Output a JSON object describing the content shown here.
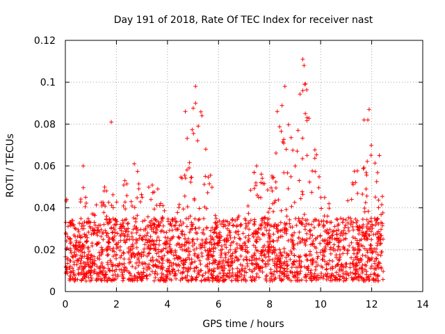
{
  "chart_data": {
    "type": "scatter",
    "title": "Day 191 of 2018, Rate Of TEC Index for receiver nast",
    "xlabel": "GPS time / hours",
    "ylabel": "ROTI / TECUs",
    "xlim": [
      0,
      14
    ],
    "ylim": [
      0,
      0.12
    ],
    "xticks": [
      0,
      2,
      4,
      6,
      8,
      10,
      12,
      14
    ],
    "yticks": [
      0,
      0.02,
      0.04,
      0.06,
      0.08,
      0.1,
      0.12
    ],
    "xtick_labels": [
      "0",
      "2",
      "4",
      "6",
      "8",
      "10",
      "12",
      "14"
    ],
    "ytick_labels": [
      "0",
      "0.02",
      "0.04",
      "0.06",
      "0.08",
      "0.1",
      "0.12"
    ],
    "grid": true,
    "marker": "+",
    "color": "#ff0000",
    "series": [
      {
        "name": "ROTI",
        "x_range_observed": [
          0,
          12.45
        ],
        "baseline_range": [
          0.005,
          0.035
        ],
        "notable_points": [
          {
            "x": 0.05,
            "y": 0.044
          },
          {
            "x": 0.7,
            "y": 0.06
          },
          {
            "x": 1.8,
            "y": 0.081
          },
          {
            "x": 2.7,
            "y": 0.061
          },
          {
            "x": 4.7,
            "y": 0.086
          },
          {
            "x": 5.1,
            "y": 0.098
          },
          {
            "x": 5.1,
            "y": 0.09
          },
          {
            "x": 5.35,
            "y": 0.084
          },
          {
            "x": 5.5,
            "y": 0.068
          },
          {
            "x": 8.3,
            "y": 0.086
          },
          {
            "x": 8.6,
            "y": 0.098
          },
          {
            "x": 9.3,
            "y": 0.111
          },
          {
            "x": 9.35,
            "y": 0.108
          },
          {
            "x": 9.3,
            "y": 0.096
          },
          {
            "x": 9.4,
            "y": 0.085
          },
          {
            "x": 11.7,
            "y": 0.082
          },
          {
            "x": 11.9,
            "y": 0.087
          },
          {
            "x": 11.85,
            "y": 0.082
          },
          {
            "x": 12.3,
            "y": 0.065
          }
        ],
        "activity_envelope": [
          {
            "x": 0.0,
            "y_max": 0.045
          },
          {
            "x": 0.5,
            "y_max": 0.03
          },
          {
            "x": 0.7,
            "y_max": 0.06
          },
          {
            "x": 1.0,
            "y_max": 0.035
          },
          {
            "x": 1.3,
            "y_max": 0.05
          },
          {
            "x": 2.0,
            "y_max": 0.05
          },
          {
            "x": 2.7,
            "y_max": 0.06
          },
          {
            "x": 3.2,
            "y_max": 0.05
          },
          {
            "x": 3.6,
            "y_max": 0.052
          },
          {
            "x": 4.0,
            "y_max": 0.035
          },
          {
            "x": 4.5,
            "y_max": 0.055
          },
          {
            "x": 5.1,
            "y_max": 0.098
          },
          {
            "x": 5.4,
            "y_max": 0.085
          },
          {
            "x": 5.8,
            "y_max": 0.045
          },
          {
            "x": 6.0,
            "y_max": 0.03
          },
          {
            "x": 7.0,
            "y_max": 0.04
          },
          {
            "x": 7.5,
            "y_max": 0.062
          },
          {
            "x": 8.0,
            "y_max": 0.05
          },
          {
            "x": 8.5,
            "y_max": 0.098
          },
          {
            "x": 9.0,
            "y_max": 0.065
          },
          {
            "x": 9.3,
            "y_max": 0.111
          },
          {
            "x": 9.8,
            "y_max": 0.07
          },
          {
            "x": 10.5,
            "y_max": 0.035
          },
          {
            "x": 11.0,
            "y_max": 0.04
          },
          {
            "x": 11.5,
            "y_max": 0.068
          },
          {
            "x": 11.9,
            "y_max": 0.087
          },
          {
            "x": 12.45,
            "y_max": 0.045
          }
        ]
      }
    ]
  }
}
